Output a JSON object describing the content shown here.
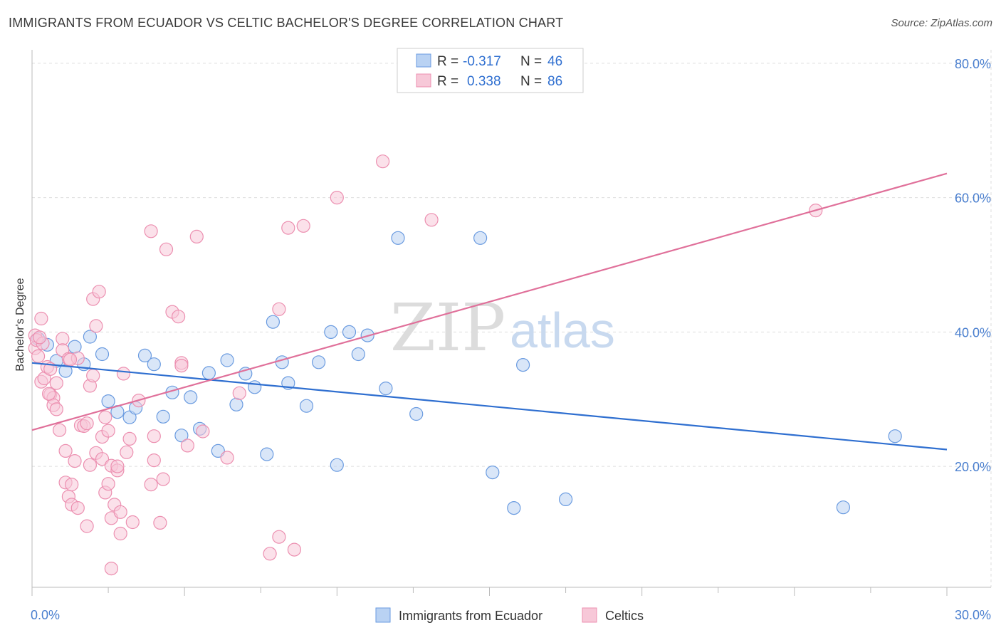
{
  "header": {
    "title": "IMMIGRANTS FROM ECUADOR VS CELTIC BACHELOR'S DEGREE CORRELATION CHART",
    "source": "Source: ZipAtlas.com"
  },
  "watermark": {
    "zip": "ZIP",
    "atlas": "atlas"
  },
  "legend": {
    "rows": [
      {
        "r_label": "R =",
        "r_value": "-0.317",
        "n_label": "N =",
        "n_value": "46"
      },
      {
        "r_label": "R =",
        "r_value": "0.338",
        "n_label": "N =",
        "n_value": "86"
      }
    ]
  },
  "bottom_legend": [
    "Immigrants from Ecuador",
    "Celtics"
  ],
  "chart_data": {
    "type": "scatter",
    "title": "IMMIGRANTS FROM ECUADOR VS CELTIC BACHELOR'S DEGREE CORRELATION CHART",
    "xlabel": "",
    "ylabel": "Bachelor's Degree",
    "xlim": [
      0,
      30
    ],
    "ylim": [
      2,
      82
    ],
    "x_tick_labels": [
      "0.0%",
      "30.0%"
    ],
    "y_ticks": [
      20,
      40,
      60,
      80
    ],
    "y_tick_labels": [
      "20.0%",
      "40.0%",
      "60.0%",
      "80.0%"
    ],
    "grid": true,
    "legend_position": "top-center",
    "series": [
      {
        "name": "Immigrants from Ecuador",
        "color": "#6a9be0",
        "fill": "#b9d2f3",
        "trend": {
          "x": [
            0,
            30
          ],
          "y": [
            35.4,
            22.5
          ],
          "color": "#2f6fd0"
        },
        "points": [
          [
            0.2,
            39.0
          ],
          [
            0.5,
            38.1
          ],
          [
            0.8,
            35.7
          ],
          [
            1.1,
            34.2
          ],
          [
            1.4,
            37.8
          ],
          [
            1.7,
            35.2
          ],
          [
            1.9,
            39.3
          ],
          [
            2.3,
            36.7
          ],
          [
            2.5,
            29.7
          ],
          [
            2.8,
            28.1
          ],
          [
            3.2,
            27.3
          ],
          [
            3.4,
            28.7
          ],
          [
            3.7,
            36.5
          ],
          [
            4.0,
            35.2
          ],
          [
            4.3,
            27.4
          ],
          [
            4.6,
            31.0
          ],
          [
            4.9,
            24.6
          ],
          [
            5.2,
            30.3
          ],
          [
            5.5,
            25.6
          ],
          [
            5.8,
            33.9
          ],
          [
            6.1,
            22.3
          ],
          [
            6.4,
            35.8
          ],
          [
            6.7,
            29.2
          ],
          [
            7.0,
            33.8
          ],
          [
            7.3,
            31.8
          ],
          [
            7.7,
            21.8
          ],
          [
            7.9,
            41.5
          ],
          [
            8.2,
            35.5
          ],
          [
            8.4,
            32.4
          ],
          [
            9.0,
            29.0
          ],
          [
            9.4,
            35.5
          ],
          [
            9.8,
            40.0
          ],
          [
            10.0,
            20.2
          ],
          [
            10.4,
            40.0
          ],
          [
            10.7,
            36.7
          ],
          [
            11.0,
            39.5
          ],
          [
            11.6,
            31.6
          ],
          [
            12.0,
            54.0
          ],
          [
            12.6,
            27.8
          ],
          [
            14.7,
            54.0
          ],
          [
            15.1,
            19.1
          ],
          [
            15.8,
            13.8
          ],
          [
            16.1,
            35.1
          ],
          [
            17.5,
            15.1
          ],
          [
            26.6,
            13.9
          ],
          [
            28.3,
            24.5
          ]
        ]
      },
      {
        "name": "Celtics",
        "color": "#ec8fb0",
        "fill": "#f7c8d8",
        "trend": {
          "x": [
            0,
            30
          ],
          "y": [
            25.4,
            63.6
          ],
          "color": "#e0709a"
        },
        "points": [
          [
            0.1,
            39.5
          ],
          [
            0.1,
            37.6
          ],
          [
            0.2,
            36.4
          ],
          [
            0.3,
            42.0
          ],
          [
            0.3,
            32.6
          ],
          [
            0.4,
            33.1
          ],
          [
            0.5,
            34.8
          ],
          [
            0.6,
            30.7
          ],
          [
            0.6,
            34.5
          ],
          [
            0.7,
            30.2
          ],
          [
            0.7,
            29.1
          ],
          [
            0.8,
            32.4
          ],
          [
            0.8,
            28.5
          ],
          [
            0.9,
            25.4
          ],
          [
            1.0,
            39.0
          ],
          [
            1.0,
            37.3
          ],
          [
            1.1,
            22.3
          ],
          [
            1.1,
            17.6
          ],
          [
            1.2,
            36.0
          ],
          [
            1.2,
            15.5
          ],
          [
            1.3,
            14.3
          ],
          [
            1.3,
            17.3
          ],
          [
            1.4,
            20.8
          ],
          [
            1.5,
            36.1
          ],
          [
            1.5,
            13.8
          ],
          [
            1.6,
            26.1
          ],
          [
            1.7,
            26.0
          ],
          [
            1.8,
            26.4
          ],
          [
            1.8,
            11.1
          ],
          [
            1.9,
            32.0
          ],
          [
            1.9,
            20.2
          ],
          [
            2.0,
            44.9
          ],
          [
            2.0,
            33.5
          ],
          [
            2.1,
            40.9
          ],
          [
            2.1,
            22.0
          ],
          [
            2.2,
            46.0
          ],
          [
            2.3,
            24.4
          ],
          [
            2.3,
            21.1
          ],
          [
            2.4,
            16.1
          ],
          [
            2.4,
            27.3
          ],
          [
            2.5,
            25.3
          ],
          [
            2.5,
            17.4
          ],
          [
            2.6,
            20.1
          ],
          [
            2.6,
            12.3
          ],
          [
            2.6,
            4.8
          ],
          [
            2.7,
            14.3
          ],
          [
            2.8,
            19.4
          ],
          [
            2.8,
            20.0
          ],
          [
            2.9,
            10.0
          ],
          [
            2.9,
            13.2
          ],
          [
            3.0,
            33.8
          ],
          [
            3.1,
            22.1
          ],
          [
            3.2,
            24.1
          ],
          [
            3.3,
            11.7
          ],
          [
            3.5,
            29.8
          ],
          [
            3.9,
            55.0
          ],
          [
            3.9,
            17.3
          ],
          [
            4.0,
            20.9
          ],
          [
            4.0,
            24.5
          ],
          [
            4.2,
            11.6
          ],
          [
            4.3,
            18.1
          ],
          [
            4.4,
            52.3
          ],
          [
            4.6,
            43.0
          ],
          [
            4.8,
            42.3
          ],
          [
            4.9,
            35.4
          ],
          [
            4.9,
            35.0
          ],
          [
            5.1,
            23.1
          ],
          [
            5.6,
            25.2
          ],
          [
            5.4,
            54.2
          ],
          [
            6.4,
            21.3
          ],
          [
            6.8,
            30.9
          ],
          [
            7.8,
            7.0
          ],
          [
            8.1,
            9.5
          ],
          [
            8.1,
            43.4
          ],
          [
            8.4,
            55.5
          ],
          [
            8.6,
            7.6
          ],
          [
            8.9,
            55.8
          ],
          [
            10.0,
            60.0
          ],
          [
            11.5,
            65.4
          ],
          [
            13.1,
            56.7
          ],
          [
            25.7,
            58.1
          ],
          [
            0.15,
            38.8
          ],
          [
            0.35,
            38.3
          ],
          [
            0.25,
            39.2
          ],
          [
            0.55,
            30.8
          ],
          [
            1.25,
            35.9
          ]
        ]
      }
    ]
  }
}
